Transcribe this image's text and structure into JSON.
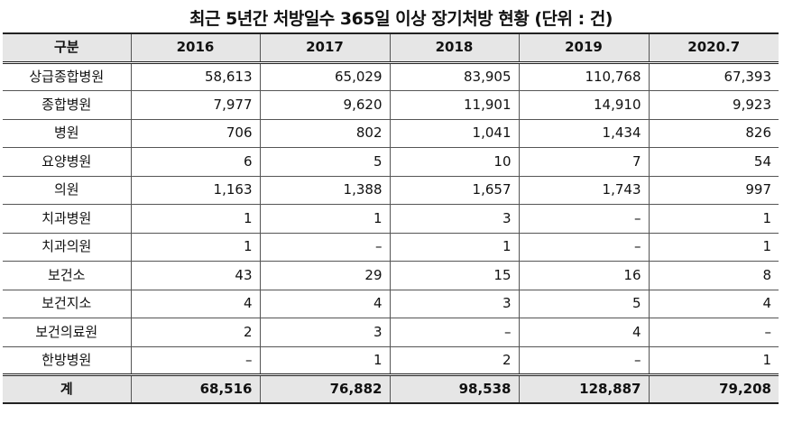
{
  "title": "최근 5년간 처방일수 365일 이상 장기처방 현황 (단위 : 건)",
  "columns": [
    "구분",
    "2016",
    "2017",
    "2018",
    "2019",
    "2020.7"
  ],
  "rows": [
    [
      "상급종합병원",
      "58,613",
      "65,029",
      "83,905",
      "110,768",
      "67,393"
    ],
    [
      "종합병원",
      "7,977",
      "9,620",
      "11,901",
      "14,910",
      "9,923"
    ],
    [
      "병원",
      "706",
      "802",
      "1,041",
      "1,434",
      "826"
    ],
    [
      "요양병원",
      "6",
      "5",
      "10",
      "7",
      "54"
    ],
    [
      "의원",
      "1,163",
      "1,388",
      "1,657",
      "1,743",
      "997"
    ],
    [
      "치과병원",
      "1",
      "1",
      "3",
      "–",
      "1"
    ],
    [
      "치과의원",
      "1",
      "–",
      "1",
      "–",
      "1"
    ],
    [
      "보건소",
      "43",
      "29",
      "15",
      "16",
      "8"
    ],
    [
      "보건지소",
      "4",
      "4",
      "3",
      "5",
      "4"
    ],
    [
      "보건의료원",
      "2",
      "3",
      "–",
      "4",
      "–"
    ],
    [
      "한방병원",
      "–",
      "1",
      "2",
      "–",
      "1"
    ]
  ],
  "total": [
    "계",
    "68,516",
    "76,882",
    "98,538",
    "128,887",
    "79,208"
  ]
}
